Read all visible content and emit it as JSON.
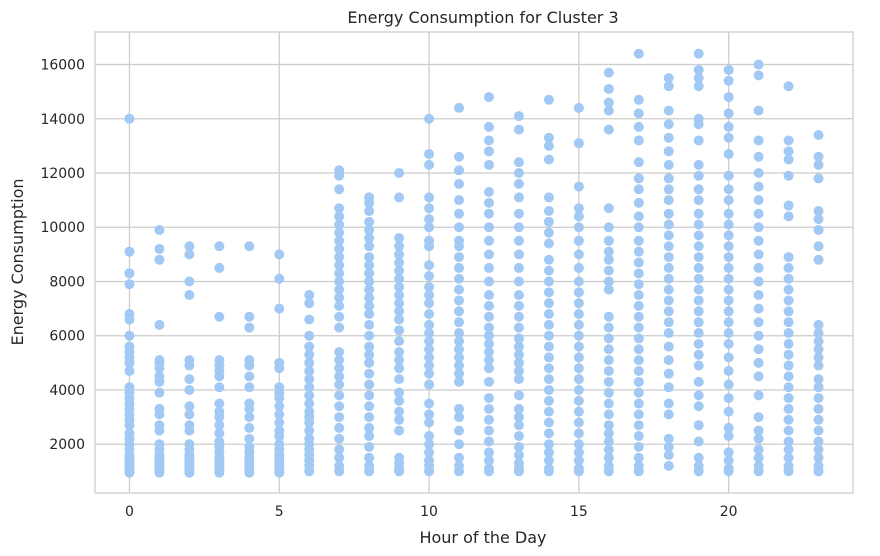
{
  "chart_data": {
    "type": "scatter",
    "title": "Energy Consumption for Cluster 3",
    "xlabel": "Hour of the Day",
    "ylabel": "Energy Consumption",
    "xlim": [
      -1.15,
      24.15
    ],
    "ylim": [
      200,
      17200
    ],
    "x_ticks": [
      0,
      5,
      10,
      15,
      20
    ],
    "y_ticks": [
      2000,
      4000,
      6000,
      8000,
      10000,
      12000,
      14000,
      16000
    ],
    "grid": true,
    "legend": "none",
    "marker_color": "#a1c9f4",
    "points_by_hour": [
      {
        "x": 0,
        "y": [
          14000,
          9100,
          8300,
          7900,
          6800,
          6600,
          6000,
          5600,
          5400,
          5200,
          5000,
          4700,
          4100,
          3900,
          3700,
          3500,
          3300,
          3100,
          2900,
          2700,
          2400,
          2200,
          2000,
          1800,
          1600,
          1500,
          1400,
          1300,
          1200,
          1100,
          1000,
          950
        ]
      },
      {
        "x": 1,
        "y": [
          9900,
          9200,
          8800,
          6400,
          5100,
          5000,
          4800,
          4500,
          4300,
          3900,
          3300,
          3100,
          2700,
          2500,
          2000,
          1800,
          1600,
          1500,
          1400,
          1300,
          1200,
          1100,
          1000,
          950
        ]
      },
      {
        "x": 2,
        "y": [
          9300,
          9000,
          8000,
          7500,
          5100,
          4900,
          4400,
          4000,
          3400,
          3100,
          2700,
          2500,
          2000,
          1800,
          1600,
          1500,
          1400,
          1300,
          1200,
          1100,
          1000,
          950
        ]
      },
      {
        "x": 3,
        "y": [
          9300,
          8500,
          6700,
          5100,
          4900,
          4700,
          4500,
          4100,
          3500,
          3200,
          3000,
          2700,
          2400,
          2100,
          1900,
          1700,
          1500,
          1400,
          1300,
          1200,
          1100,
          1000,
          950
        ]
      },
      {
        "x": 4,
        "y": [
          9300,
          6700,
          6300,
          5100,
          4900,
          4500,
          4100,
          3500,
          3300,
          3000,
          2600,
          2200,
          1900,
          1700,
          1500,
          1400,
          1300,
          1200,
          1100,
          1000,
          950
        ]
      },
      {
        "x": 5,
        "y": [
          9000,
          8100,
          7000,
          5000,
          4800,
          4100,
          3900,
          3700,
          3400,
          3100,
          2800,
          2500,
          2300,
          2000,
          1800,
          1600,
          1500,
          1400,
          1300,
          1200,
          1100,
          1000,
          950
        ]
      },
      {
        "x": 6,
        "y": [
          7500,
          7200,
          6600,
          6000,
          5600,
          5300,
          5000,
          4700,
          4400,
          4100,
          3800,
          3500,
          3200,
          3000,
          2800,
          2500,
          2200,
          2000,
          1800,
          1600,
          1400,
          1200,
          1000
        ]
      },
      {
        "x": 7,
        "y": [
          12100,
          11900,
          11400,
          10700,
          10400,
          10100,
          9800,
          9500,
          9200,
          8900,
          8600,
          8300,
          8000,
          7700,
          7400,
          7100,
          6700,
          6300,
          5400,
          5100,
          4800,
          4500,
          4200,
          3800,
          3400,
          3000,
          2600,
          2200,
          1800,
          1500,
          1200,
          1000
        ]
      },
      {
        "x": 8,
        "y": [
          11100,
          10900,
          10600,
          10200,
          9900,
          9600,
          9300,
          8900,
          8600,
          8300,
          8000,
          7700,
          7400,
          7100,
          6800,
          6400,
          6000,
          5600,
          5300,
          5000,
          4600,
          4200,
          3800,
          3400,
          3000,
          2600,
          2300,
          1900,
          1500,
          1200,
          1000
        ]
      },
      {
        "x": 9,
        "y": [
          12000,
          11100,
          9600,
          9300,
          9000,
          8700,
          8400,
          8100,
          7800,
          7500,
          7200,
          6900,
          6600,
          6200,
          5800,
          5400,
          5100,
          4800,
          4400,
          3900,
          3600,
          3200,
          2900,
          2500,
          1500,
          1300,
          1100,
          1000
        ]
      },
      {
        "x": 10,
        "y": [
          14000,
          12700,
          12300,
          11100,
          10700,
          10300,
          10000,
          9500,
          9300,
          8600,
          8200,
          7800,
          7500,
          7200,
          6800,
          6400,
          6100,
          5800,
          5500,
          5200,
          4900,
          4600,
          4200,
          3500,
          3100,
          2800,
          2300,
          2000,
          1700,
          1400,
          1200,
          1000
        ]
      },
      {
        "x": 11,
        "y": [
          14400,
          12600,
          12100,
          11600,
          11000,
          10500,
          10000,
          9500,
          9300,
          8900,
          8500,
          8100,
          7700,
          7300,
          6900,
          6500,
          6100,
          5800,
          5500,
          5200,
          4900,
          4600,
          4300,
          3300,
          3000,
          2500,
          2000,
          1500,
          1200,
          1000
        ]
      },
      {
        "x": 12,
        "y": [
          14800,
          13700,
          13200,
          12800,
          12300,
          11300,
          10900,
          10500,
          10000,
          9500,
          9000,
          8500,
          8000,
          7500,
          7100,
          6700,
          6300,
          6000,
          5700,
          5400,
          5100,
          4800,
          4300,
          3700,
          3300,
          2900,
          2500,
          2100,
          1700,
          1400,
          1100,
          1000
        ]
      },
      {
        "x": 13,
        "y": [
          14100,
          13600,
          12400,
          12000,
          11600,
          11100,
          10500,
          10000,
          9500,
          9000,
          8500,
          8000,
          7500,
          7100,
          6700,
          6300,
          5900,
          5600,
          5300,
          5000,
          4700,
          4400,
          3800,
          3300,
          3000,
          2700,
          2300,
          1900,
          1600,
          1300,
          1100,
          1000
        ]
      },
      {
        "x": 14,
        "y": [
          14700,
          13300,
          13000,
          12500,
          11100,
          10600,
          10200,
          9800,
          9400,
          8800,
          8400,
          8000,
          7600,
          7200,
          6800,
          6400,
          6000,
          5600,
          5200,
          4800,
          4400,
          4000,
          3600,
          3200,
          2800,
          2400,
          2000,
          1700,
          1400,
          1100,
          1000
        ]
      },
      {
        "x": 15,
        "y": [
          14400,
          13100,
          11500,
          10700,
          10400,
          10000,
          9500,
          9000,
          8500,
          8000,
          7600,
          7200,
          6800,
          6400,
          6000,
          5600,
          5200,
          4800,
          4400,
          4000,
          3600,
          3200,
          2800,
          2400,
          2000,
          1700,
          1400,
          1100,
          1000
        ]
      },
      {
        "x": 16,
        "y": [
          15700,
          15100,
          14600,
          14300,
          13600,
          10700,
          10000,
          9500,
          9100,
          8800,
          8400,
          8000,
          7700,
          6700,
          6300,
          5900,
          5500,
          5100,
          4700,
          4300,
          3900,
          3500,
          3100,
          2700,
          2400,
          2100,
          1800,
          1500,
          1200,
          1000
        ]
      },
      {
        "x": 17,
        "y": [
          16400,
          14700,
          14200,
          13700,
          13200,
          12400,
          11800,
          11400,
          10900,
          10400,
          10000,
          9500,
          9100,
          8700,
          8300,
          7900,
          7500,
          7100,
          6700,
          6300,
          5900,
          5500,
          5100,
          4700,
          4300,
          3900,
          3500,
          3100,
          2700,
          2300,
          1900,
          1500,
          1200,
          1000
        ]
      },
      {
        "x": 18,
        "y": [
          15500,
          15200,
          14300,
          13800,
          13300,
          12800,
          12300,
          11800,
          11400,
          11000,
          10500,
          10100,
          9700,
          9300,
          8900,
          8500,
          8100,
          7700,
          7300,
          6900,
          6500,
          6100,
          5600,
          5100,
          4600,
          4100,
          3500,
          3100,
          2200,
          1900,
          1600,
          1200
        ]
      },
      {
        "x": 19,
        "y": [
          16400,
          15800,
          15500,
          15200,
          14000,
          13800,
          13200,
          12300,
          11900,
          11400,
          11000,
          10500,
          10100,
          9700,
          9300,
          8900,
          8500,
          8100,
          7700,
          7300,
          6900,
          6500,
          6100,
          5700,
          5300,
          4900,
          4300,
          3800,
          3400,
          2700,
          2100,
          1500,
          1200,
          1000
        ]
      },
      {
        "x": 20,
        "y": [
          15800,
          15400,
          14800,
          14200,
          13700,
          13300,
          12700,
          11900,
          11400,
          11000,
          10500,
          10100,
          9700,
          9300,
          8900,
          8500,
          8100,
          7700,
          7300,
          6900,
          6500,
          6100,
          5700,
          5200,
          4700,
          4200,
          3700,
          3200,
          2600,
          2300,
          1700,
          1400,
          1100,
          1000
        ]
      },
      {
        "x": 21,
        "y": [
          16000,
          15600,
          14300,
          13200,
          12600,
          12000,
          11500,
          11000,
          10500,
          10000,
          9500,
          9000,
          8500,
          8000,
          7500,
          7000,
          6500,
          6000,
          5500,
          5000,
          4500,
          3800,
          3000,
          2500,
          2200,
          1800,
          1500,
          1200,
          1000
        ]
      },
      {
        "x": 22,
        "y": [
          15200,
          13200,
          12800,
          12500,
          11900,
          10800,
          10400,
          8900,
          8500,
          8100,
          7700,
          7300,
          6900,
          6500,
          6100,
          5700,
          5300,
          4900,
          4500,
          4100,
          3700,
          3300,
          2900,
          2500,
          2100,
          1800,
          1500,
          1200,
          1000
        ]
      },
      {
        "x": 23,
        "y": [
          13400,
          12600,
          12300,
          11800,
          10600,
          10300,
          9900,
          9300,
          8800,
          6400,
          6100,
          5800,
          5500,
          5200,
          4900,
          4400,
          4100,
          3700,
          3300,
          2900,
          2500,
          2100,
          1800,
          1500,
          1200,
          1000
        ]
      }
    ]
  }
}
